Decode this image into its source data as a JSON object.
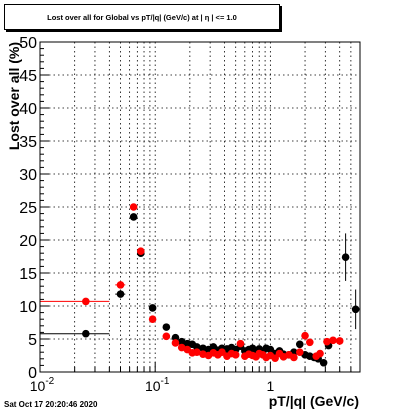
{
  "title": "Lost over all for Global vs pT/|q| (GeV/c) at | η | <= 1.0",
  "timestamp": "Sat Oct 17 20:20:46 2020",
  "chart_data": {
    "type": "scatter",
    "title": "Lost over all for Global vs pT/|q| (GeV/c) at | η | <= 1.0",
    "xlabel": "pT/|q| (GeV/c)",
    "ylabel": "Lost over all (%)",
    "xscale": "log",
    "xlim": [
      0.01,
      6.0
    ],
    "ylim": [
      0,
      50
    ],
    "x_tick_labels": [
      "10^-2",
      "10^-1",
      "1"
    ],
    "y_ticks": [
      0,
      5,
      10,
      15,
      20,
      25,
      30,
      35,
      40,
      45,
      50
    ],
    "grid": true,
    "series": [
      {
        "color": "#000000",
        "points": [
          {
            "x": 0.025,
            "y": 5.8,
            "xerr": [
              0.01,
              0.04
            ]
          },
          {
            "x": 0.05,
            "y": 11.8,
            "xerr": [
              0.045,
              0.055
            ]
          },
          {
            "x": 0.065,
            "y": 23.5
          },
          {
            "x": 0.075,
            "y": 18.0
          },
          {
            "x": 0.095,
            "y": 9.7
          },
          {
            "x": 0.125,
            "y": 6.8
          },
          {
            "x": 0.15,
            "y": 5.2
          },
          {
            "x": 0.17,
            "y": 4.6
          },
          {
            "x": 0.19,
            "y": 4.3
          },
          {
            "x": 0.21,
            "y": 4.2
          },
          {
            "x": 0.23,
            "y": 3.8
          },
          {
            "x": 0.26,
            "y": 3.6
          },
          {
            "x": 0.29,
            "y": 3.4
          },
          {
            "x": 0.32,
            "y": 3.8
          },
          {
            "x": 0.35,
            "y": 3.3
          },
          {
            "x": 0.38,
            "y": 3.6
          },
          {
            "x": 0.42,
            "y": 3.5
          },
          {
            "x": 0.46,
            "y": 3.7
          },
          {
            "x": 0.5,
            "y": 3.4
          },
          {
            "x": 0.55,
            "y": 3.9
          },
          {
            "x": 0.6,
            "y": 3.2
          },
          {
            "x": 0.65,
            "y": 3.4
          },
          {
            "x": 0.7,
            "y": 3.6
          },
          {
            "x": 0.75,
            "y": 2.9
          },
          {
            "x": 0.8,
            "y": 3.5
          },
          {
            "x": 0.86,
            "y": 3.1
          },
          {
            "x": 0.92,
            "y": 3.6
          },
          {
            "x": 1.0,
            "y": 3.4
          },
          {
            "x": 1.1,
            "y": 2.8
          },
          {
            "x": 1.2,
            "y": 3.2
          },
          {
            "x": 1.3,
            "y": 2.7
          },
          {
            "x": 1.45,
            "y": 2.6
          },
          {
            "x": 1.6,
            "y": 3.0
          },
          {
            "x": 1.8,
            "y": 4.2
          },
          {
            "x": 2.0,
            "y": 2.6
          },
          {
            "x": 2.2,
            "y": 2.4
          },
          {
            "x": 2.4,
            "y": 2.2
          },
          {
            "x": 2.6,
            "y": 2.0
          },
          {
            "x": 2.9,
            "y": 1.4
          },
          {
            "x": 3.2,
            "y": 4.0
          },
          {
            "x": 4.5,
            "y": 17.4,
            "yerr": [
              13.8,
              21.0
            ]
          },
          {
            "x": 5.5,
            "y": 9.5,
            "yerr": [
              6.5,
              12.5
            ]
          }
        ]
      },
      {
        "color": "#ff0000",
        "points": [
          {
            "x": 0.025,
            "y": 10.7,
            "xerr": [
              0.01,
              0.04
            ]
          },
          {
            "x": 0.05,
            "y": 13.2,
            "xerr": [
              0.045,
              0.055
            ]
          },
          {
            "x": 0.065,
            "y": 25.0
          },
          {
            "x": 0.075,
            "y": 18.3
          },
          {
            "x": 0.095,
            "y": 8.0
          },
          {
            "x": 0.125,
            "y": 5.4
          },
          {
            "x": 0.15,
            "y": 4.4
          },
          {
            "x": 0.17,
            "y": 3.7
          },
          {
            "x": 0.19,
            "y": 3.4
          },
          {
            "x": 0.21,
            "y": 2.9
          },
          {
            "x": 0.23,
            "y": 3.0
          },
          {
            "x": 0.26,
            "y": 2.7
          },
          {
            "x": 0.29,
            "y": 2.5
          },
          {
            "x": 0.32,
            "y": 2.9
          },
          {
            "x": 0.35,
            "y": 2.6
          },
          {
            "x": 0.38,
            "y": 3.0
          },
          {
            "x": 0.42,
            "y": 2.4
          },
          {
            "x": 0.46,
            "y": 2.8
          },
          {
            "x": 0.5,
            "y": 2.6
          },
          {
            "x": 0.55,
            "y": 4.3
          },
          {
            "x": 0.6,
            "y": 2.4
          },
          {
            "x": 0.65,
            "y": 2.7
          },
          {
            "x": 0.7,
            "y": 2.5
          },
          {
            "x": 0.75,
            "y": 2.3
          },
          {
            "x": 0.8,
            "y": 2.8
          },
          {
            "x": 0.86,
            "y": 2.6
          },
          {
            "x": 0.92,
            "y": 2.2
          },
          {
            "x": 1.0,
            "y": 2.5
          },
          {
            "x": 1.1,
            "y": 2.1
          },
          {
            "x": 1.2,
            "y": 2.8
          },
          {
            "x": 1.3,
            "y": 2.3
          },
          {
            "x": 1.45,
            "y": 2.6
          },
          {
            "x": 1.6,
            "y": 2.2
          },
          {
            "x": 1.8,
            "y": 3.0
          },
          {
            "x": 2.0,
            "y": 5.5
          },
          {
            "x": 2.2,
            "y": 4.5
          },
          {
            "x": 2.5,
            "y": 2.4
          },
          {
            "x": 2.7,
            "y": 2.8
          },
          {
            "x": 3.1,
            "y": 4.6
          },
          {
            "x": 3.5,
            "y": 4.8
          },
          {
            "x": 4.0,
            "y": 4.7
          }
        ]
      }
    ]
  }
}
